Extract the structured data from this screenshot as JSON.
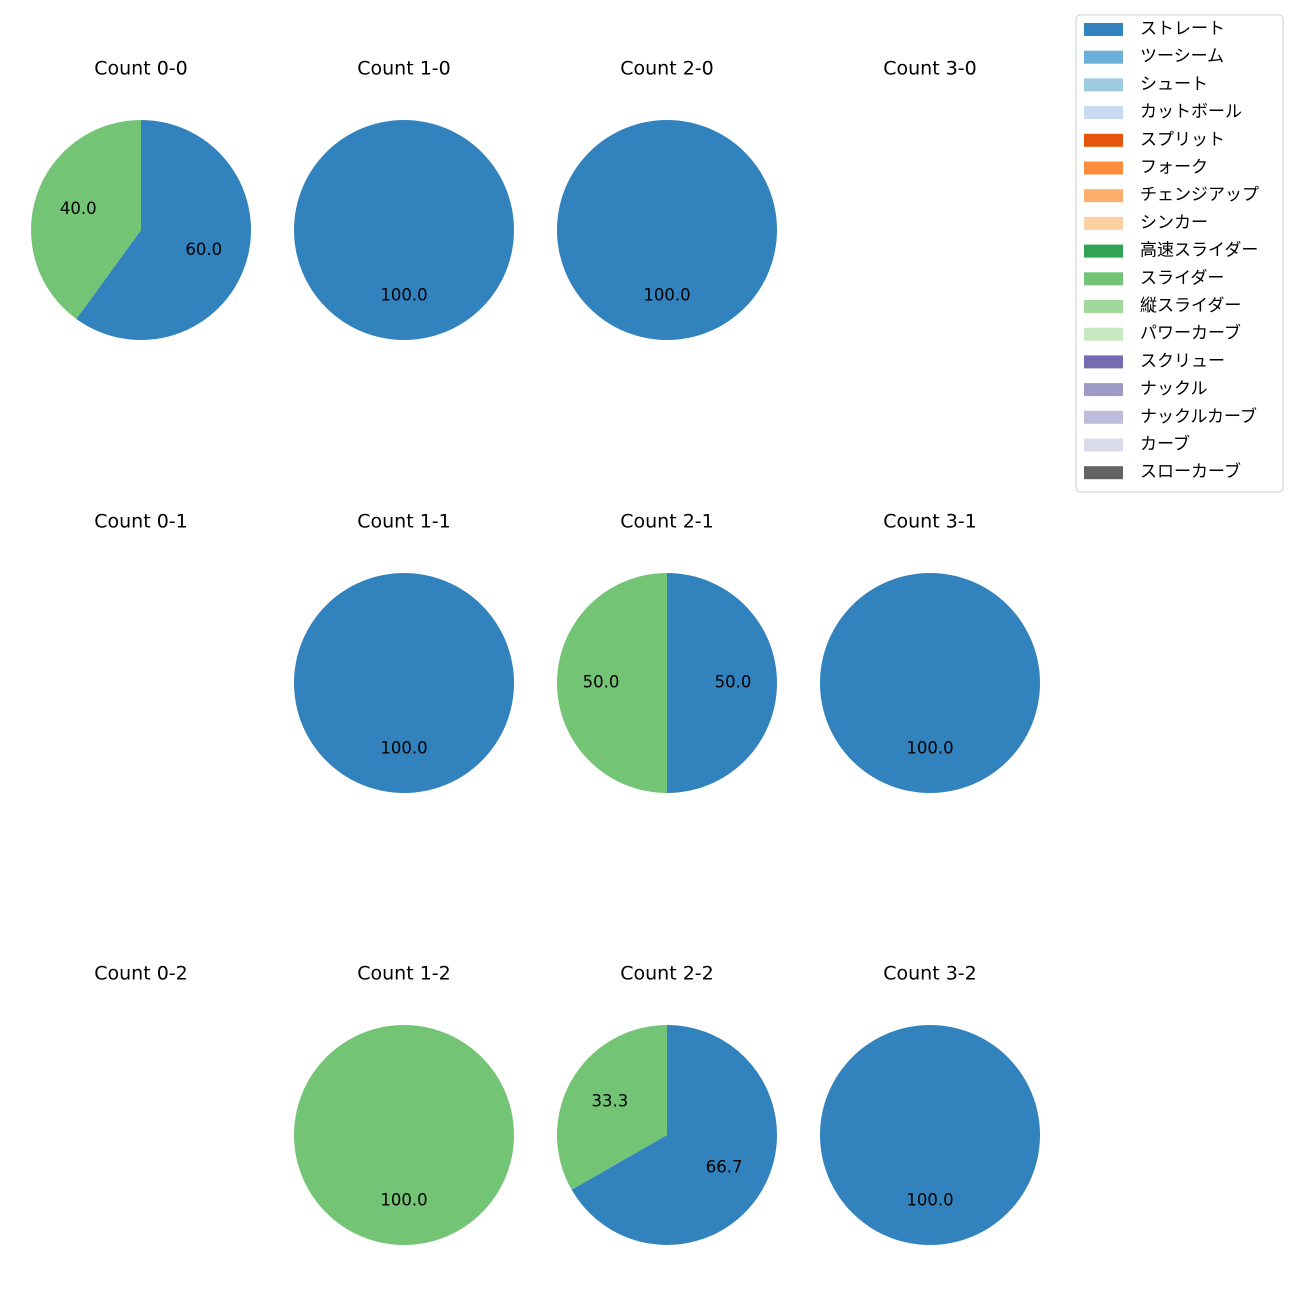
{
  "chart_data": {
    "type": "pie",
    "legend_position": "top-right",
    "legend": [
      {
        "label": "ストレート",
        "color": "#3182bd"
      },
      {
        "label": "ツーシーム",
        "color": "#6baed6"
      },
      {
        "label": "シュート",
        "color": "#9ecae1"
      },
      {
        "label": "カットボール",
        "color": "#c6dbef"
      },
      {
        "label": "スプリット",
        "color": "#e6550d"
      },
      {
        "label": "フォーク",
        "color": "#fd8d3c"
      },
      {
        "label": "チェンジアップ",
        "color": "#fdae6b"
      },
      {
        "label": "シンカー",
        "color": "#fdd0a2"
      },
      {
        "label": "高速スライダー",
        "color": "#31a354"
      },
      {
        "label": "スライダー",
        "color": "#74c476"
      },
      {
        "label": "縦スライダー",
        "color": "#a1d99b"
      },
      {
        "label": "パワーカーブ",
        "color": "#c7e9c0"
      },
      {
        "label": "スクリュー",
        "color": "#756bb1"
      },
      {
        "label": "ナックル",
        "color": "#9e9ac8"
      },
      {
        "label": "ナックルカーブ",
        "color": "#bcbddc"
      },
      {
        "label": "カーブ",
        "color": "#dadaeb"
      },
      {
        "label": "スローカーブ",
        "color": "#636363"
      }
    ],
    "panels": [
      {
        "title": "Count 0-0",
        "slices": [
          {
            "pitch": "ストレート",
            "value": 60.0,
            "label": "60.0"
          },
          {
            "pitch": "スライダー",
            "value": 40.0,
            "label": "40.0"
          }
        ]
      },
      {
        "title": "Count 1-0",
        "slices": [
          {
            "pitch": "ストレート",
            "value": 100.0,
            "label": "100.0"
          }
        ]
      },
      {
        "title": "Count 2-0",
        "slices": [
          {
            "pitch": "ストレート",
            "value": 100.0,
            "label": "100.0"
          }
        ]
      },
      {
        "title": "Count 3-0",
        "slices": []
      },
      {
        "title": "Count 0-1",
        "slices": []
      },
      {
        "title": "Count 1-1",
        "slices": [
          {
            "pitch": "ストレート",
            "value": 100.0,
            "label": "100.0"
          }
        ]
      },
      {
        "title": "Count 2-1",
        "slices": [
          {
            "pitch": "ストレート",
            "value": 50.0,
            "label": "50.0"
          },
          {
            "pitch": "スライダー",
            "value": 50.0,
            "label": "50.0"
          }
        ]
      },
      {
        "title": "Count 3-1",
        "slices": [
          {
            "pitch": "ストレート",
            "value": 100.0,
            "label": "100.0"
          }
        ]
      },
      {
        "title": "Count 0-2",
        "slices": []
      },
      {
        "title": "Count 1-2",
        "slices": [
          {
            "pitch": "スライダー",
            "value": 100.0,
            "label": "100.0"
          }
        ]
      },
      {
        "title": "Count 2-2",
        "slices": [
          {
            "pitch": "ストレート",
            "value": 66.7,
            "label": "66.7"
          },
          {
            "pitch": "スライダー",
            "value": 33.3,
            "label": "33.3"
          }
        ]
      },
      {
        "title": "Count 3-2",
        "slices": [
          {
            "pitch": "ストレート",
            "value": 100.0,
            "label": "100.0"
          }
        ]
      }
    ]
  }
}
